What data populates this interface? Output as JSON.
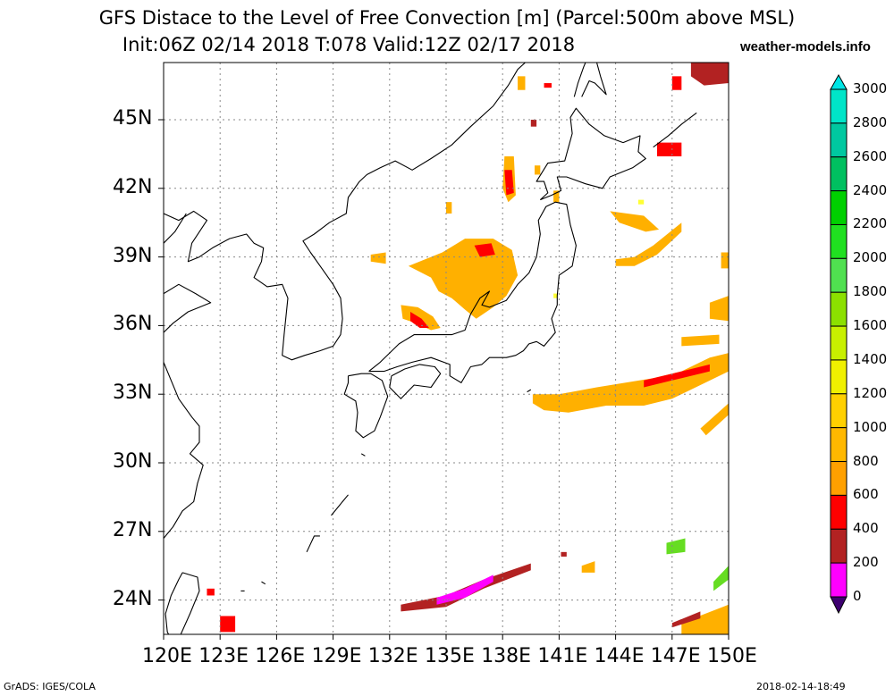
{
  "header": {
    "title_line1": "GFS Distace to the Level of Free Convection [m] (Parcel:500m above MSL)",
    "title_line2": "Init:06Z 02/14 2018 T:078 Valid:12Z 02/17 2018",
    "brand": "weather-models.info"
  },
  "footer": {
    "left": "GrADS: IGES/COLA",
    "right": "2018-02-14-18:49"
  },
  "map": {
    "lon_range": [
      120,
      150
    ],
    "lat_range": [
      22.5,
      47.5
    ],
    "x_ticks": [
      "120E",
      "123E",
      "126E",
      "129E",
      "132E",
      "135E",
      "138E",
      "141E",
      "144E",
      "147E",
      "150E"
    ],
    "y_ticks": [
      "24N",
      "27N",
      "30N",
      "33N",
      "36N",
      "39N",
      "42N",
      "45N"
    ]
  },
  "colorbar": {
    "labels": [
      "3000",
      "2800",
      "2600",
      "2400",
      "2200",
      "2000",
      "1800",
      "1600",
      "1400",
      "1200",
      "1000",
      "800",
      "600",
      "400",
      "200",
      "0"
    ],
    "colors": [
      "#00e5c8",
      "#00c8a0",
      "#00c060",
      "#00d000",
      "#20e020",
      "#50e050",
      "#8ce000",
      "#c8f000",
      "#f0f000",
      "#ffd000",
      "#ffb800",
      "#ffa000",
      "#ff0000",
      "#b22222",
      "#ff00ff",
      "#4b0082"
    ],
    "top_color": "#00e5e5",
    "bottom_color": "#3d0070"
  },
  "fields": {
    "colors": {
      "orange": "#ffb000",
      "orange2": "#ffa500",
      "yellow": "#ffd700",
      "red": "#ff0000",
      "darkred": "#b22222",
      "magenta": "#ff00ff",
      "lightyellow": "#ffff33",
      "green": "#66dd22",
      "land": "#000000"
    }
  }
}
